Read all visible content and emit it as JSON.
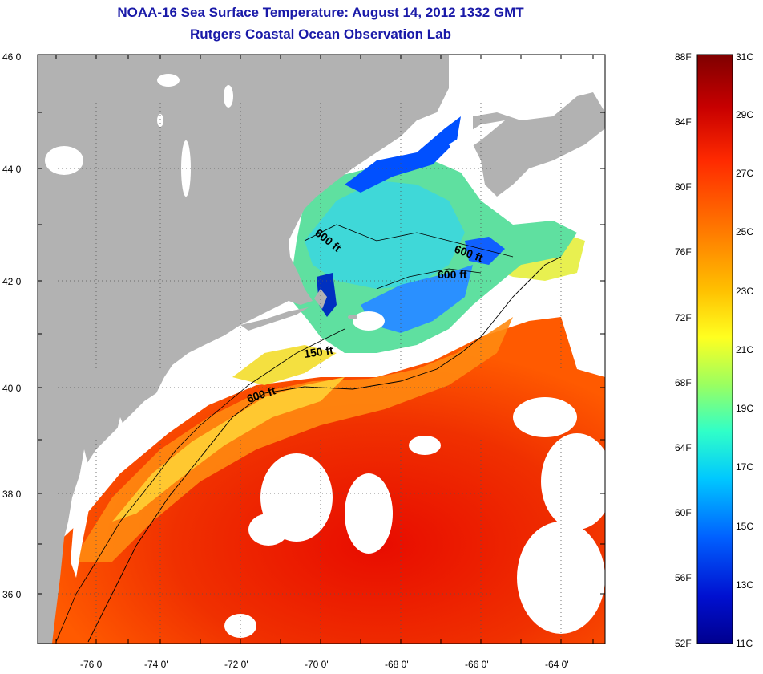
{
  "title": {
    "line1": "NOAA-16 Sea Surface Temperature:  August 14, 2012 1332 GMT",
    "line2": "Rutgers Coastal Ocean Observation Lab"
  },
  "colors": {
    "title": "#1a1aa8",
    "land": "#b2b2b2",
    "cloud": "#ffffff",
    "frame": "#000000"
  },
  "map": {
    "lat_labels": [
      "46 0'",
      "44 0'",
      "42 0'",
      "40 0'",
      "38 0'",
      "36 0'"
    ],
    "lon_labels": [
      "-76 0'",
      "-74 0'",
      "-72 0'",
      "-70 0'",
      "-68 0'",
      "-66 0'",
      "-64 0'"
    ],
    "grid": "dotted",
    "contour_labels": [
      {
        "text": "600 ft"
      },
      {
        "text": "600 ft"
      },
      {
        "text": "600 ft"
      },
      {
        "text": "150 ft"
      },
      {
        "text": "600 ft"
      }
    ]
  },
  "colorbar": {
    "fahrenheit_labels": [
      "88F",
      "84F",
      "80F",
      "76F",
      "72F",
      "68F",
      "64F",
      "60F",
      "56F",
      "52F"
    ],
    "celsius_labels": [
      "31C",
      "29C",
      "27C",
      "25C",
      "23C",
      "21C",
      "19C",
      "17C",
      "15C",
      "13C",
      "11C"
    ],
    "gradient_top_to_bottom": [
      "#7f0000",
      "#c80000",
      "#ff2a00",
      "#ff7a00",
      "#ffc000",
      "#ffff20",
      "#9bff60",
      "#30ffc8",
      "#00c8ff",
      "#0060ff",
      "#0010d0",
      "#00008f"
    ]
  }
}
